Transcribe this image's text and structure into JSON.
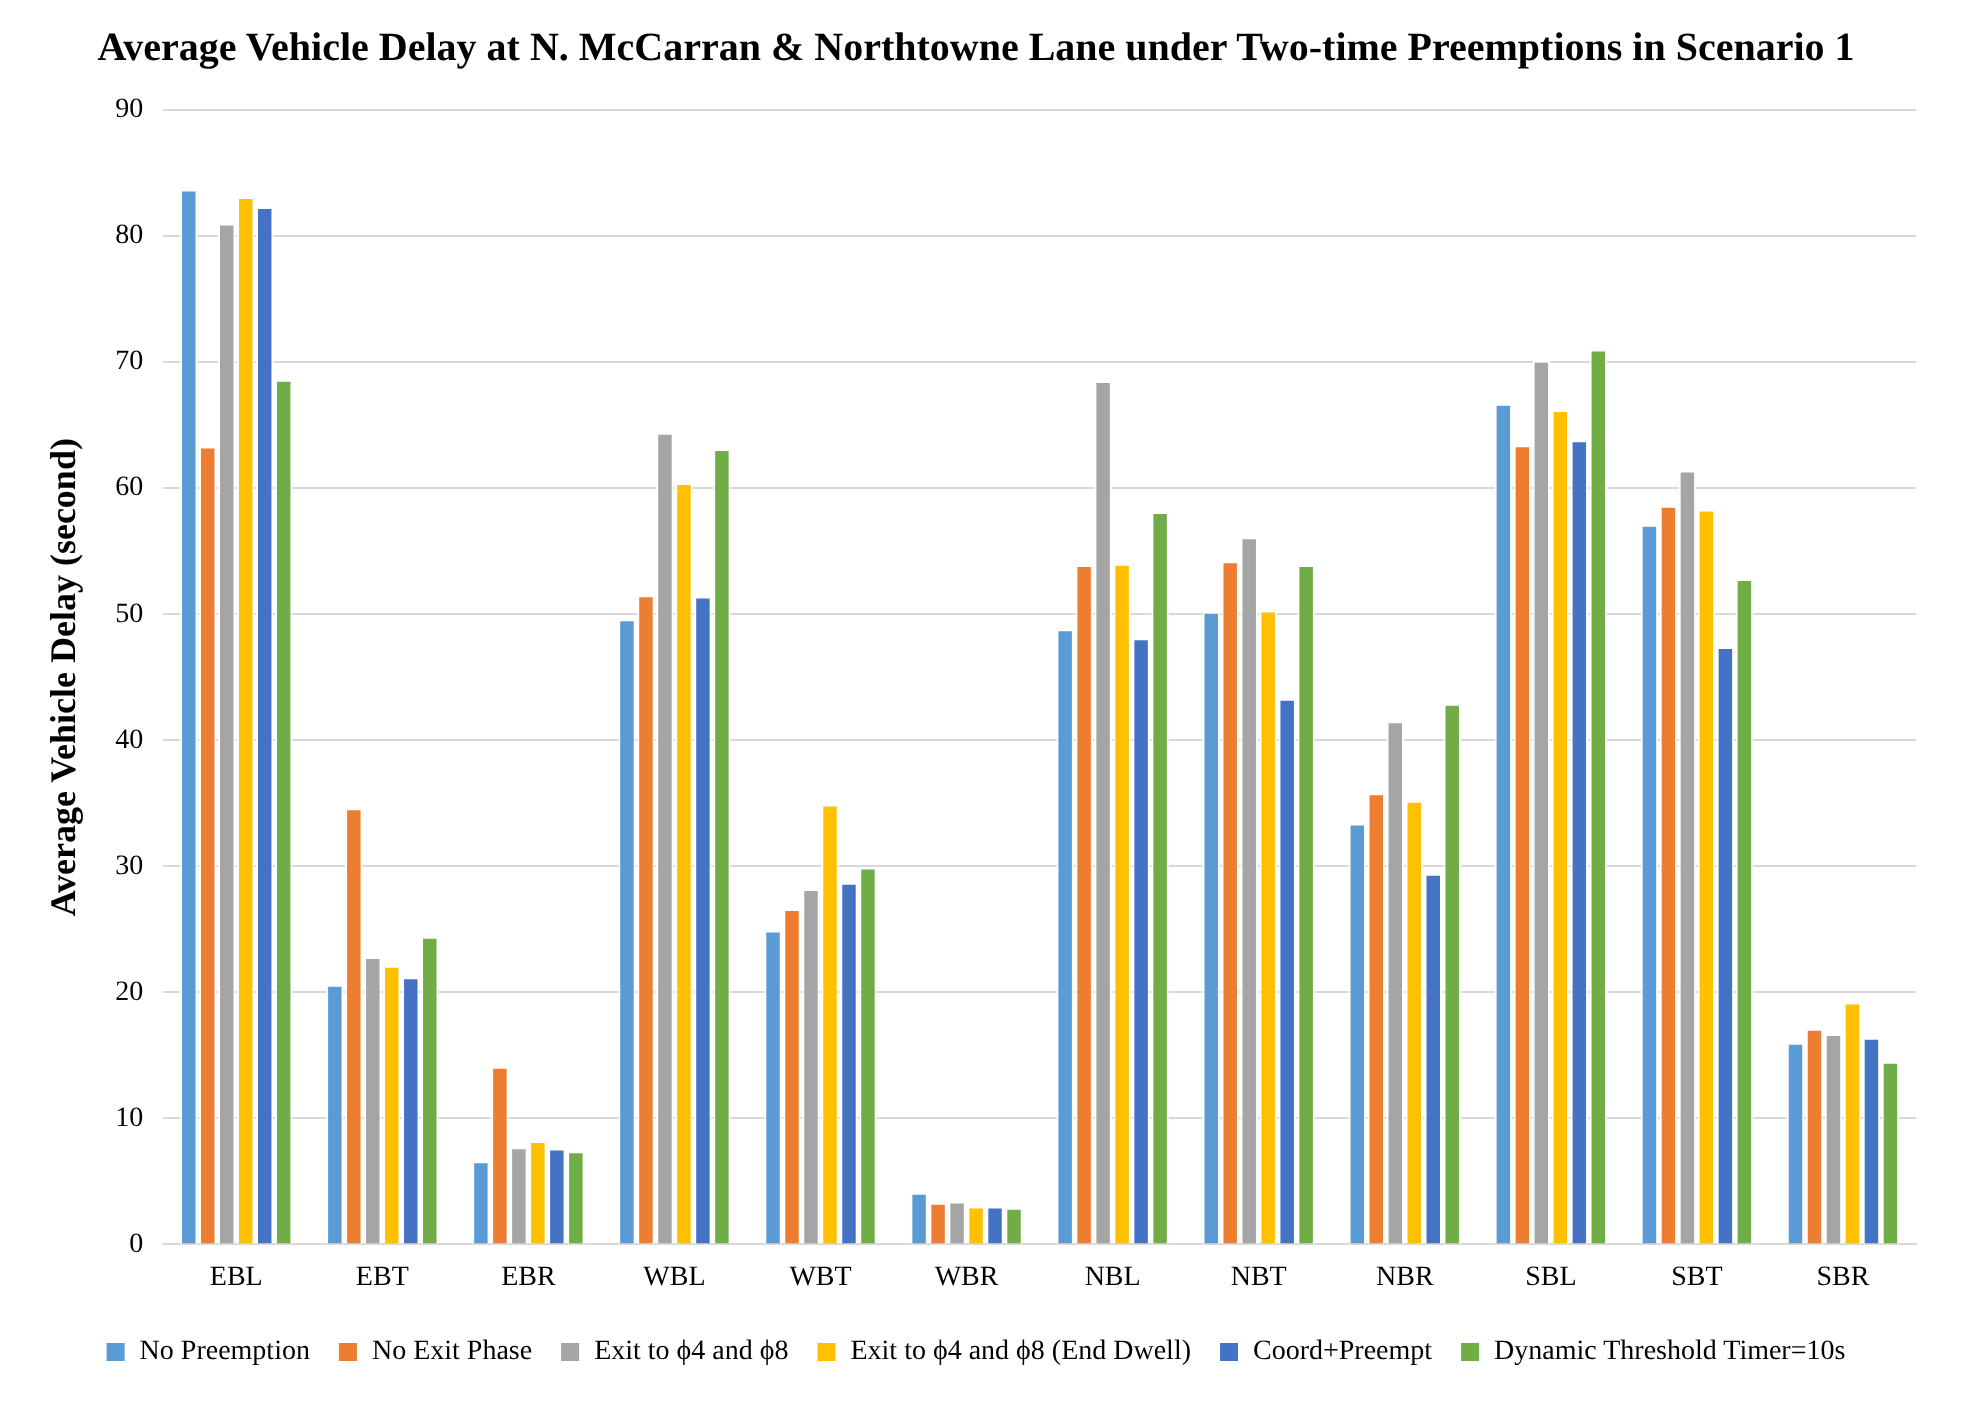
{
  "chart_data": {
    "type": "bar",
    "title": "Average Vehicle Delay at N. McCarran & Northtowne Lane under Two-time Preemptions in Scenario 1",
    "ylabel": "Average Vehicle Delay (second)",
    "categories": [
      "EBL",
      "EBT",
      "EBR",
      "WBL",
      "WBT",
      "WBR",
      "NBL",
      "NBT",
      "NBR",
      "SBL",
      "SBT",
      "SBR"
    ],
    "series": [
      {
        "name": "No Preemption",
        "color": "#5b9bd5",
        "values": [
          83.7,
          20.6,
          6.6,
          49.6,
          24.9,
          4.1,
          48.8,
          50.2,
          33.4,
          66.7,
          57.1,
          16.0
        ]
      },
      {
        "name": "No Exit Phase",
        "color": "#ed7d31",
        "values": [
          63.3,
          34.6,
          14.1,
          51.5,
          26.6,
          3.3,
          53.9,
          54.2,
          35.8,
          63.4,
          58.6,
          17.1
        ]
      },
      {
        "name": "Exit to ϕ4 and ϕ8",
        "color": "#a5a5a5",
        "values": [
          81.0,
          22.8,
          7.7,
          64.4,
          28.2,
          3.4,
          68.5,
          56.1,
          41.5,
          70.1,
          61.4,
          16.7
        ]
      },
      {
        "name": "Exit to ϕ4 and ϕ8 (End Dwell)",
        "color": "#ffc000",
        "values": [
          83.1,
          22.1,
          8.2,
          60.4,
          34.9,
          3.0,
          54.0,
          50.3,
          35.2,
          66.2,
          58.3,
          19.2
        ]
      },
      {
        "name": "Coord+Preempt",
        "color": "#4472c4",
        "values": [
          82.3,
          21.2,
          7.6,
          51.4,
          28.7,
          3.0,
          48.1,
          43.3,
          29.4,
          63.8,
          47.4,
          16.4
        ]
      },
      {
        "name": "Dynamic Threshold Timer=10s",
        "color": "#70ad47",
        "values": [
          68.6,
          24.4,
          7.4,
          63.1,
          29.9,
          2.9,
          58.1,
          53.9,
          42.9,
          71.0,
          52.8,
          14.5
        ]
      }
    ],
    "ylim": [
      0,
      90
    ],
    "yticks": [
      0,
      10,
      20,
      30,
      40,
      50,
      60,
      70,
      80,
      90
    ],
    "grid": "y",
    "legend": "bottom"
  }
}
